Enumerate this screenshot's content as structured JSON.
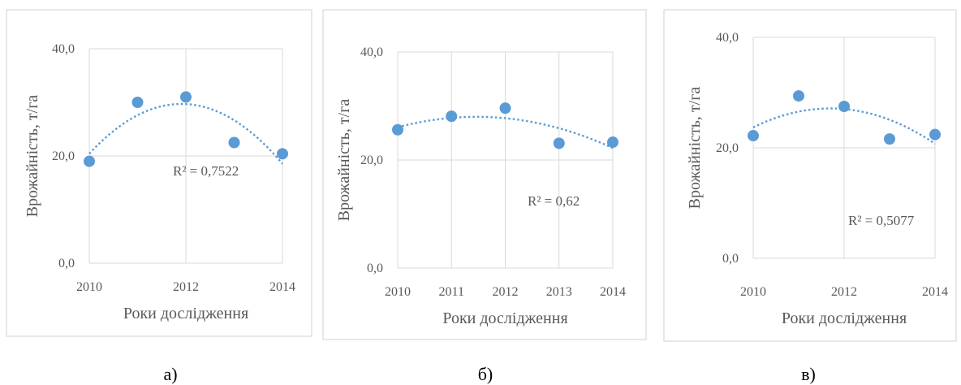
{
  "chart_data": [
    {
      "type": "scatter",
      "panel_caption": "а)",
      "xlabel": "Роки дослідження",
      "ylabel": "Врожайність, т/га",
      "xlim": [
        2010,
        2014
      ],
      "ylim": [
        0,
        40
      ],
      "x_ticks": [
        "2010",
        "2012",
        "2014"
      ],
      "y_ticks": [
        "0,0",
        "20,0",
        "40,0"
      ],
      "grid": true,
      "x": [
        2010,
        2011,
        2012,
        2013,
        2014
      ],
      "y": [
        19.0,
        30.0,
        31.0,
        22.5,
        20.4
      ],
      "trendline": "polynomial-2",
      "r2_label": "R² = 0,7522"
    },
    {
      "type": "scatter",
      "panel_caption": "б)",
      "xlabel": "Роки дослідження",
      "ylabel": "Врожайність, т/га",
      "xlim": [
        2010,
        2014
      ],
      "ylim": [
        0,
        40
      ],
      "x_ticks": [
        "2010",
        "2011",
        "2012",
        "2013",
        "2014"
      ],
      "y_ticks": [
        "0,0",
        "20,0",
        "40,0"
      ],
      "grid": true,
      "x": [
        2010,
        2011,
        2012,
        2013,
        2014
      ],
      "y": [
        25.6,
        28.1,
        29.6,
        23.1,
        23.3
      ],
      "trendline": "polynomial-2",
      "r2_label": "R² = 0,62"
    },
    {
      "type": "scatter",
      "panel_caption": "в)",
      "xlabel": "Роки дослідження",
      "ylabel": "Врожайність, т/га",
      "xlim": [
        2010,
        2014
      ],
      "ylim": [
        0,
        40
      ],
      "x_ticks": [
        "2010",
        "2012",
        "2014"
      ],
      "y_ticks": [
        "0,0",
        "20,0",
        "40,0"
      ],
      "grid": true,
      "x": [
        2010,
        2011,
        2012,
        2013,
        2014
      ],
      "y": [
        22.2,
        29.4,
        27.5,
        21.6,
        22.4
      ],
      "trendline": "polynomial-2",
      "r2_label": "R² = 0,5077"
    }
  ]
}
